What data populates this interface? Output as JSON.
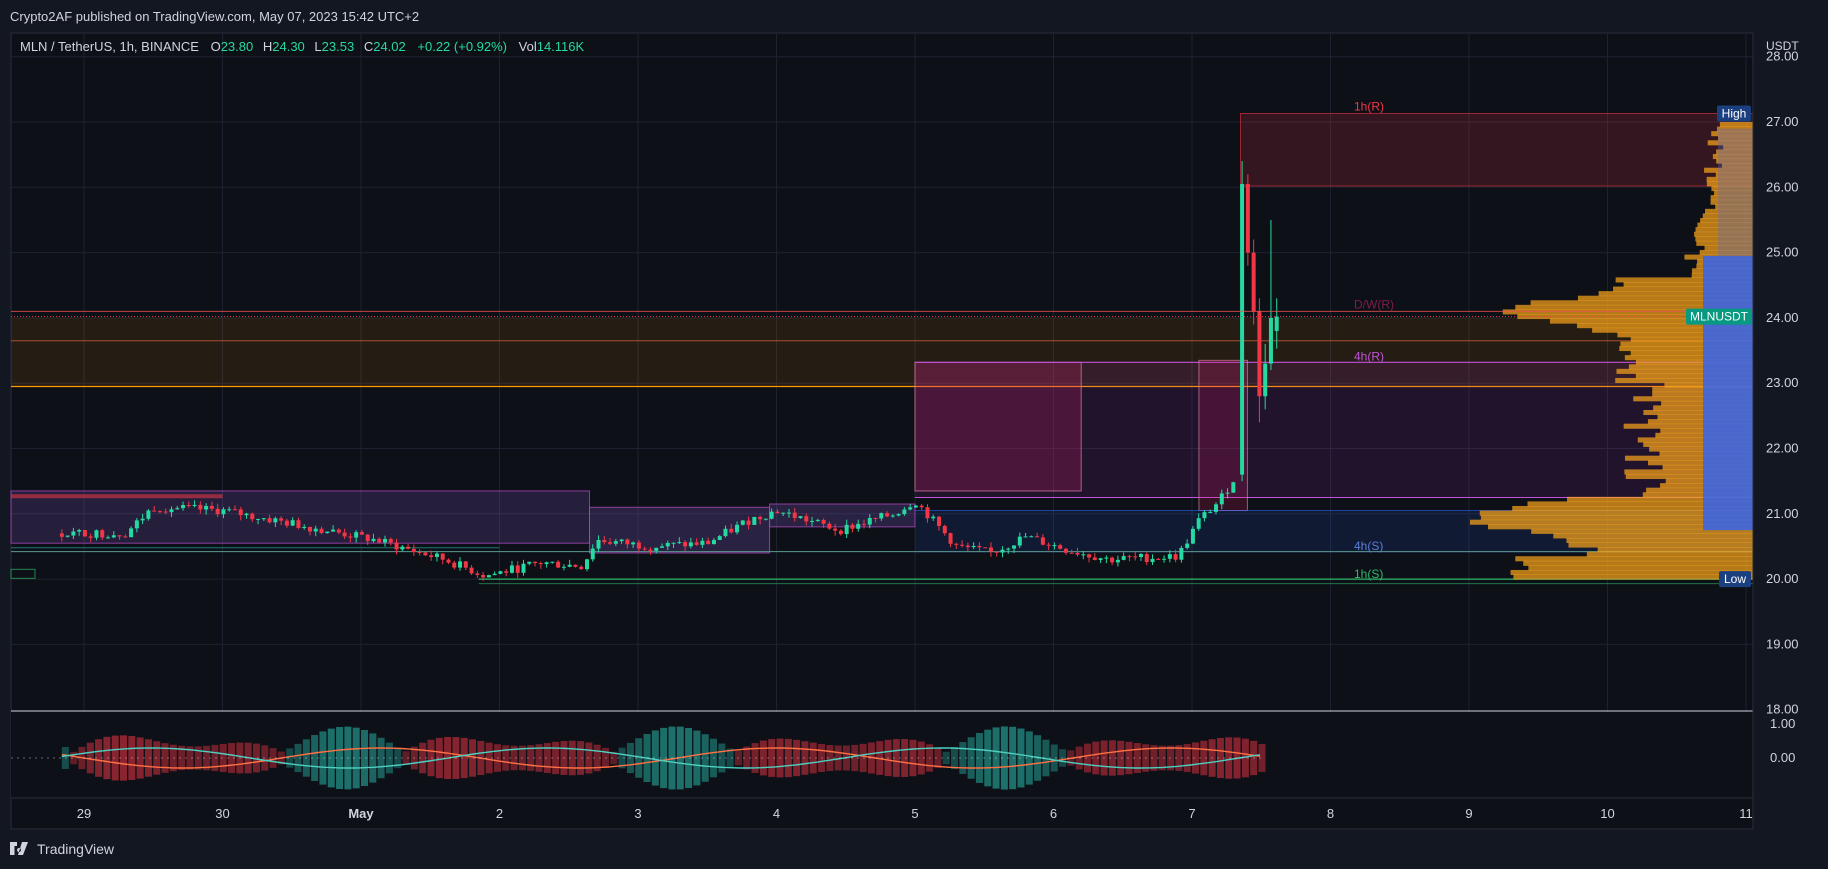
{
  "header": {
    "publisher": "Crypto2AF published on TradingView.com, May 07, 2023 15:42 UTC+2",
    "brand": "TradingView"
  },
  "legend": {
    "symbol": "MLN / TetherUS, 1h, BINANCE",
    "open_label": "O",
    "open": "23.80",
    "high_label": "H",
    "high": "24.30",
    "low_label": "L",
    "low": "23.53",
    "close_label": "C",
    "close": "24.02",
    "change": "+0.22 (+0.92%)",
    "vol_label": "Vol",
    "vol": "14.116K"
  },
  "price_axis": {
    "currency": "USDT",
    "ticks": [
      {
        "value": 28,
        "label": "28.00"
      },
      {
        "value": 27,
        "label": "27.00"
      },
      {
        "value": 26,
        "label": "26.00"
      },
      {
        "value": 25,
        "label": "25.00"
      },
      {
        "value": 24,
        "label": "24.00"
      },
      {
        "value": 23,
        "label": "23.00"
      },
      {
        "value": 22,
        "label": "22.00"
      },
      {
        "value": 21,
        "label": "21.00"
      },
      {
        "value": 20,
        "label": "20.00"
      },
      {
        "value": 19,
        "label": "19.00"
      },
      {
        "value": 18,
        "label": "18.00"
      }
    ],
    "high_badge": "High",
    "low_badge": "Low",
    "symbol_badge": "MLNUSDT",
    "high_value": 27.13,
    "low_value": 20.0,
    "last_price": 24.02
  },
  "oscillator_axis": {
    "ticks": [
      {
        "value": 1,
        "label": "1.00"
      },
      {
        "value": 0,
        "label": "0.00"
      }
    ]
  },
  "time_axis": {
    "ticks": [
      {
        "t": 0,
        "label": "29"
      },
      {
        "t": 1,
        "label": "30"
      },
      {
        "t": 2,
        "label": "May"
      },
      {
        "t": 3,
        "label": "2"
      },
      {
        "t": 4,
        "label": "3"
      },
      {
        "t": 5,
        "label": "4"
      },
      {
        "t": 6,
        "label": "5"
      },
      {
        "t": 7,
        "label": "6"
      },
      {
        "t": 8,
        "label": "7"
      },
      {
        "t": 9,
        "label": "8"
      },
      {
        "t": 10,
        "label": "9"
      },
      {
        "t": 11,
        "label": "10"
      },
      {
        "t": 12,
        "label": "11"
      }
    ]
  },
  "levels": [
    {
      "label": "1h(R)",
      "value": 27.13,
      "color": "#f23645"
    },
    {
      "label": "D/W(R)",
      "value": 24.1,
      "color": "#7b1f4a"
    },
    {
      "label": "4h(R)",
      "value": 23.3,
      "color": "#c152d9"
    },
    {
      "label": "4h(S)",
      "value": 20.4,
      "color": "#5b7fd9"
    },
    {
      "label": "1h(S)",
      "value": 19.97,
      "color": "#2fb86a"
    }
  ],
  "chart_data": {
    "type": "candlestick",
    "symbol": "MLN / TetherUS",
    "interval": "1h",
    "exchange": "BINANCE",
    "y_range": [
      18,
      28.3
    ],
    "anchors": [
      {
        "t": -0.16,
        "close": 20.7
      },
      {
        "t": 0.3,
        "close": 20.7
      },
      {
        "t": 0.5,
        "close": 21.1
      },
      {
        "t": 1.0,
        "close": 21.05
      },
      {
        "t": 1.5,
        "close": 20.85
      },
      {
        "t": 2.1,
        "close": 20.6
      },
      {
        "t": 2.6,
        "close": 20.3
      },
      {
        "t": 2.9,
        "close": 20.05
      },
      {
        "t": 3.3,
        "close": 20.25
      },
      {
        "t": 3.6,
        "close": 20.2
      },
      {
        "t": 3.7,
        "close": 20.6
      },
      {
        "t": 4.1,
        "close": 20.5
      },
      {
        "t": 4.5,
        "close": 20.55
      },
      {
        "t": 4.8,
        "close": 20.9
      },
      {
        "t": 5.0,
        "close": 21.05
      },
      {
        "t": 5.45,
        "close": 20.75
      },
      {
        "t": 5.85,
        "close": 21.0
      },
      {
        "t": 6.0,
        "close": 21.2
      },
      {
        "t": 6.3,
        "close": 20.5
      },
      {
        "t": 6.55,
        "close": 20.4
      },
      {
        "t": 6.8,
        "close": 20.65
      },
      {
        "t": 7.1,
        "close": 20.45
      },
      {
        "t": 7.4,
        "close": 20.3
      },
      {
        "t": 7.9,
        "close": 20.35
      },
      {
        "t": 8.05,
        "close": 20.9
      },
      {
        "t": 8.2,
        "close": 21.2
      },
      {
        "t": 8.32,
        "close": 21.6
      }
    ],
    "spike_candles": [
      {
        "open": 21.6,
        "high": 26.4,
        "low": 21.5,
        "close": 26.05
      },
      {
        "open": 26.05,
        "high": 26.2,
        "low": 24.8,
        "close": 25.0
      },
      {
        "open": 25.0,
        "high": 25.2,
        "low": 23.9,
        "close": 24.1
      },
      {
        "open": 24.1,
        "high": 24.3,
        "low": 22.4,
        "close": 22.8
      },
      {
        "open": 22.8,
        "high": 23.6,
        "low": 22.6,
        "close": 23.3
      },
      {
        "open": 23.3,
        "high": 25.5,
        "low": 23.2,
        "close": 24.0
      },
      {
        "open": 23.8,
        "high": 24.3,
        "low": 23.53,
        "close": 24.02
      }
    ]
  },
  "colors": {
    "up": "#26d9a2",
    "down": "#f23645",
    "background": "#131722",
    "grid": "#1e2230",
    "axis_text": "#d1d4dc",
    "volume_profile": "#f7a21b",
    "volume_profile_value": "#2962ff",
    "symbol_badge": "#089981",
    "range_badge": "#1c3f80"
  }
}
